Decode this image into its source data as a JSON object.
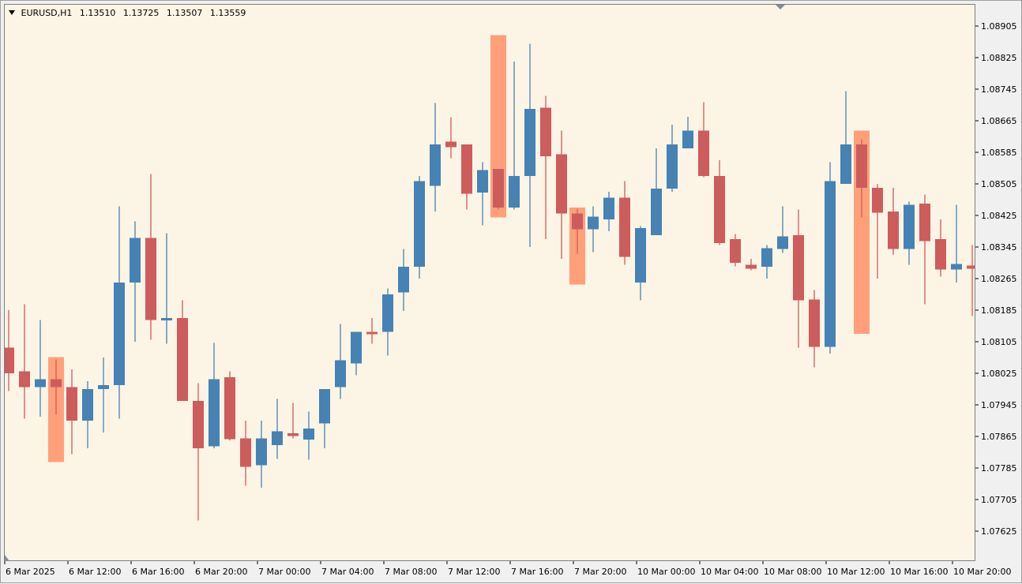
{
  "header": {
    "symbol": "EURUSD,H1",
    "open": "1.13510",
    "high": "1.13725",
    "low": "1.13507",
    "close": "1.13559"
  },
  "colors": {
    "background": "#fcf4e4",
    "bull": "#4682b4",
    "bear": "#cd5c5c",
    "highlight": "#ffa07a"
  },
  "chart_data": {
    "type": "candlestick",
    "title": "EURUSD,H1",
    "grid": false,
    "ylim": [
      1.07625,
      1.0896
    ],
    "yticks": [
      "1.08905",
      "1.08825",
      "1.08745",
      "1.08665",
      "1.08585",
      "1.08505",
      "1.08425",
      "1.08345",
      "1.08265",
      "1.08185",
      "1.08105",
      "1.08025",
      "1.07945",
      "1.07865",
      "1.07785",
      "1.07705",
      "1.07625"
    ],
    "xticks": [
      {
        "label": "6 Mar 2025",
        "index": 0
      },
      {
        "label": "6 Mar 12:00",
        "index": 4
      },
      {
        "label": "6 Mar 16:00",
        "index": 8
      },
      {
        "label": "6 Mar 20:00",
        "index": 12
      },
      {
        "label": "7 Mar 00:00",
        "index": 16
      },
      {
        "label": "7 Mar 04:00",
        "index": 20
      },
      {
        "label": "7 Mar 08:00",
        "index": 24
      },
      {
        "label": "7 Mar 12:00",
        "index": 28
      },
      {
        "label": "7 Mar 16:00",
        "index": 32
      },
      {
        "label": "7 Mar 20:00",
        "index": 36
      },
      {
        "label": "10 Mar 00:00",
        "index": 40
      },
      {
        "label": "10 Mar 04:00",
        "index": 44
      },
      {
        "label": "10 Mar 08:00",
        "index": 48
      },
      {
        "label": "10 Mar 12:00",
        "index": 52
      },
      {
        "label": "10 Mar 16:00",
        "index": 56
      },
      {
        "label": "10 Mar 20:00",
        "index": 60
      }
    ],
    "highlight_bars": [
      {
        "index": 3,
        "top": 1.08066,
        "bottom": 1.078
      },
      {
        "index": 31,
        "top": 1.08882,
        "bottom": 1.0842
      },
      {
        "index": 36,
        "top": 1.08445,
        "bottom": 1.0825
      },
      {
        "index": 54,
        "top": 1.0864,
        "bottom": 1.08125
      }
    ],
    "candles": [
      {
        "o": 1.0809,
        "h": 1.08185,
        "l": 1.0798,
        "c": 1.08025
      },
      {
        "o": 1.0803,
        "h": 1.082,
        "l": 1.0791,
        "c": 1.0799
      },
      {
        "o": 1.0799,
        "h": 1.0816,
        "l": 1.07915,
        "c": 1.0801
      },
      {
        "o": 1.0801,
        "h": 1.0806,
        "l": 1.0792,
        "c": 1.0799
      },
      {
        "o": 1.0799,
        "h": 1.08035,
        "l": 1.0782,
        "c": 1.07905
      },
      {
        "o": 1.07905,
        "h": 1.08005,
        "l": 1.07835,
        "c": 1.07985
      },
      {
        "o": 1.07985,
        "h": 1.08065,
        "l": 1.07875,
        "c": 1.07995
      },
      {
        "o": 1.07995,
        "h": 1.08448,
        "l": 1.0791,
        "c": 1.08255
      },
      {
        "o": 1.08255,
        "h": 1.0841,
        "l": 1.08105,
        "c": 1.08368
      },
      {
        "o": 1.08368,
        "h": 1.0853,
        "l": 1.0811,
        "c": 1.0816
      },
      {
        "o": 1.0816,
        "h": 1.0838,
        "l": 1.081,
        "c": 1.08165
      },
      {
        "o": 1.08165,
        "h": 1.0821,
        "l": 1.07955,
        "c": 1.07955
      },
      {
        "o": 1.07955,
        "h": 1.08,
        "l": 1.07652,
        "c": 1.07835
      },
      {
        "o": 1.0784,
        "h": 1.08102,
        "l": 1.07835,
        "c": 1.0801
      },
      {
        "o": 1.08015,
        "h": 1.0803,
        "l": 1.07855,
        "c": 1.07858
      },
      {
        "o": 1.0786,
        "h": 1.07905,
        "l": 1.0774,
        "c": 1.07788
      },
      {
        "o": 1.07792,
        "h": 1.07905,
        "l": 1.07735,
        "c": 1.0786
      },
      {
        "o": 1.07843,
        "h": 1.0796,
        "l": 1.07808,
        "c": 1.07878
      },
      {
        "o": 1.07873,
        "h": 1.0795,
        "l": 1.0786,
        "c": 1.07866
      },
      {
        "o": 1.07857,
        "h": 1.07928,
        "l": 1.07806,
        "c": 1.07885
      },
      {
        "o": 1.07898,
        "h": 1.07985,
        "l": 1.07835,
        "c": 1.07985
      },
      {
        "o": 1.0799,
        "h": 1.0815,
        "l": 1.0796,
        "c": 1.08058
      },
      {
        "o": 1.0805,
        "h": 1.0813,
        "l": 1.0802,
        "c": 1.0813
      },
      {
        "o": 1.0813,
        "h": 1.08165,
        "l": 1.081,
        "c": 1.08125
      },
      {
        "o": 1.0813,
        "h": 1.0824,
        "l": 1.0807,
        "c": 1.08225
      },
      {
        "o": 1.0823,
        "h": 1.0834,
        "l": 1.08183,
        "c": 1.08295
      },
      {
        "o": 1.08295,
        "h": 1.08525,
        "l": 1.08265,
        "c": 1.08512
      },
      {
        "o": 1.085,
        "h": 1.0871,
        "l": 1.08435,
        "c": 1.08605
      },
      {
        "o": 1.08612,
        "h": 1.08674,
        "l": 1.0857,
        "c": 1.08598
      },
      {
        "o": 1.08605,
        "h": 1.08605,
        "l": 1.0844,
        "c": 1.0848
      },
      {
        "o": 1.08483,
        "h": 1.0856,
        "l": 1.084,
        "c": 1.0854
      },
      {
        "o": 1.08543,
        "h": 1.08543,
        "l": 1.0844,
        "c": 1.08445
      },
      {
        "o": 1.08445,
        "h": 1.08815,
        "l": 1.0844,
        "c": 1.08525
      },
      {
        "o": 1.08525,
        "h": 1.0886,
        "l": 1.08345,
        "c": 1.08695
      },
      {
        "o": 1.08698,
        "h": 1.08728,
        "l": 1.08365,
        "c": 1.08575
      },
      {
        "o": 1.0858,
        "h": 1.0864,
        "l": 1.08315,
        "c": 1.0843
      },
      {
        "o": 1.0843,
        "h": 1.08442,
        "l": 1.08328,
        "c": 1.0839
      },
      {
        "o": 1.0839,
        "h": 1.08448,
        "l": 1.08332,
        "c": 1.08422
      },
      {
        "o": 1.08415,
        "h": 1.08485,
        "l": 1.08385,
        "c": 1.0847
      },
      {
        "o": 1.0847,
        "h": 1.08512,
        "l": 1.083,
        "c": 1.0832
      },
      {
        "o": 1.08255,
        "h": 1.08398,
        "l": 1.0821,
        "c": 1.08393
      },
      {
        "o": 1.08375,
        "h": 1.08595,
        "l": 1.08375,
        "c": 1.08493
      },
      {
        "o": 1.08493,
        "h": 1.08655,
        "l": 1.08485,
        "c": 1.08605
      },
      {
        "o": 1.08595,
        "h": 1.08675,
        "l": 1.08595,
        "c": 1.0864
      },
      {
        "o": 1.0864,
        "h": 1.08712,
        "l": 1.08522,
        "c": 1.08525
      },
      {
        "o": 1.08525,
        "h": 1.08565,
        "l": 1.0835,
        "c": 1.08355
      },
      {
        "o": 1.08365,
        "h": 1.08378,
        "l": 1.08296,
        "c": 1.08305
      },
      {
        "o": 1.083,
        "h": 1.08315,
        "l": 1.08286,
        "c": 1.0829
      },
      {
        "o": 1.08295,
        "h": 1.0835,
        "l": 1.08265,
        "c": 1.08342
      },
      {
        "o": 1.0834,
        "h": 1.08448,
        "l": 1.0833,
        "c": 1.08372
      },
      {
        "o": 1.08375,
        "h": 1.0844,
        "l": 1.0809,
        "c": 1.0821
      },
      {
        "o": 1.08212,
        "h": 1.08236,
        "l": 1.0804,
        "c": 1.08092
      },
      {
        "o": 1.08092,
        "h": 1.0856,
        "l": 1.08075,
        "c": 1.08512
      },
      {
        "o": 1.08505,
        "h": 1.0874,
        "l": 1.08505,
        "c": 1.08605
      },
      {
        "o": 1.08605,
        "h": 1.08618,
        "l": 1.0842,
        "c": 1.08495
      },
      {
        "o": 1.08495,
        "h": 1.08505,
        "l": 1.08265,
        "c": 1.08432
      },
      {
        "o": 1.08435,
        "h": 1.08495,
        "l": 1.08325,
        "c": 1.0834
      },
      {
        "o": 1.0834,
        "h": 1.0846,
        "l": 1.083,
        "c": 1.08452
      },
      {
        "o": 1.08455,
        "h": 1.08478,
        "l": 1.082,
        "c": 1.0836
      },
      {
        "o": 1.08365,
        "h": 1.08415,
        "l": 1.0827,
        "c": 1.08288
      },
      {
        "o": 1.08288,
        "h": 1.08452,
        "l": 1.08255,
        "c": 1.08302
      },
      {
        "o": 1.08298,
        "h": 1.0835,
        "l": 1.0817,
        "c": 1.0829
      }
    ]
  }
}
